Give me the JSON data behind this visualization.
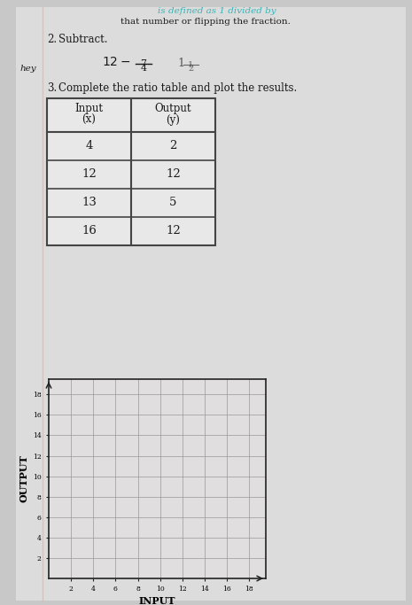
{
  "bg_color": "#c8c8c8",
  "page_bg": "#dcdcdc",
  "top_text_line1": "is defined as 1 divided by",
  "top_text_line2": "that number or flipping the fraction.",
  "section2_text": "Subtract.",
  "section3_text": "Complete the ratio table and plot the results.",
  "table_headers": [
    "Input\n(x)",
    "Output\n(y)"
  ],
  "table_rows": [
    [
      "4",
      "2"
    ],
    [
      "12",
      "12"
    ],
    [
      "13",
      "5"
    ],
    [
      "16",
      "12"
    ]
  ],
  "graph_xlabel": "INPUT",
  "graph_ylabel": "OUTPUT",
  "graph_xticks": [
    2,
    4,
    6,
    8,
    10,
    12,
    14,
    16,
    18
  ],
  "graph_yticks": [
    2,
    4,
    6,
    8,
    10,
    12,
    14,
    16,
    18
  ],
  "graph_xlim": [
    0,
    19.5
  ],
  "graph_ylim": [
    0,
    19.5
  ],
  "margin_label": "hey",
  "font_color": "#1a1a1a",
  "table_border_color": "#444444",
  "grid_color": "#999999",
  "teal_color": "#3ab5b8"
}
